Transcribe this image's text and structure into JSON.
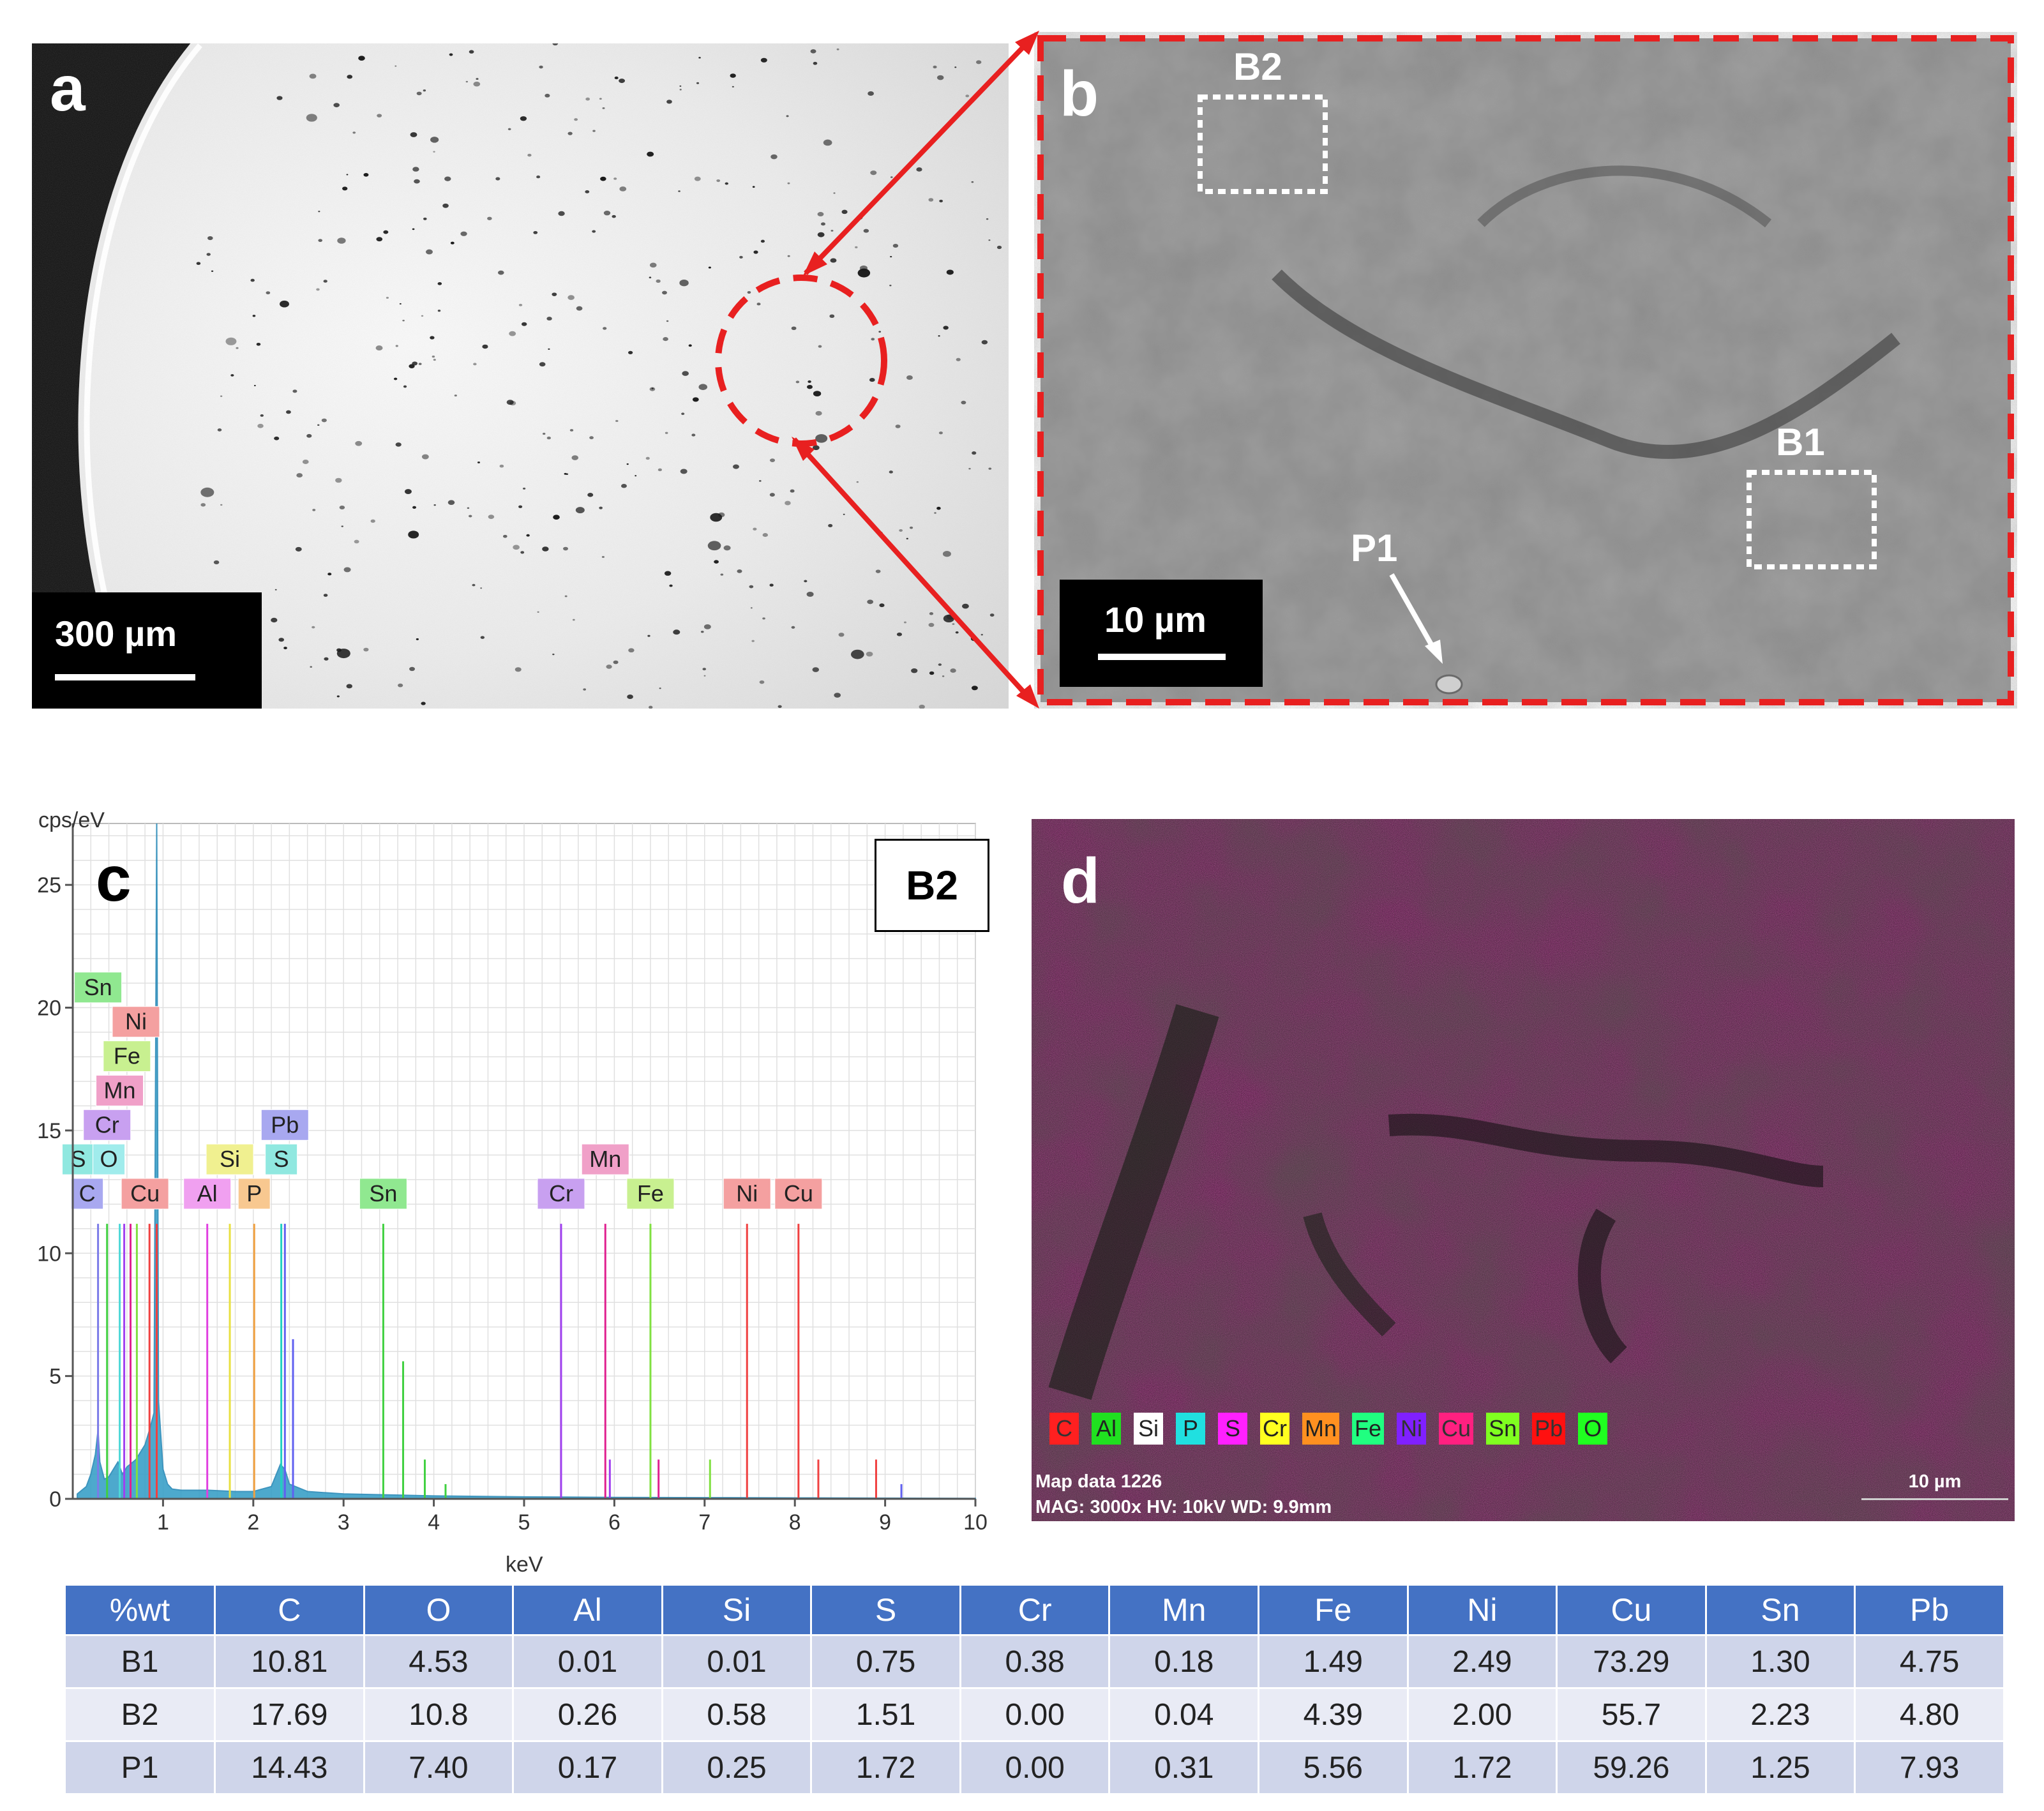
{
  "panel_a": {
    "label": "a",
    "scale_bar": "300 µm"
  },
  "panel_b": {
    "label": "b",
    "scale_bar": "10 µm",
    "regions": [
      {
        "name": "B2"
      },
      {
        "name": "B1"
      },
      {
        "name": "P1"
      }
    ]
  },
  "panel_c": {
    "label": "c",
    "box_label": "B2",
    "chart_data": {
      "type": "line",
      "xlabel": "keV",
      "ylabel": "cps/eV",
      "xlim": [
        0,
        10
      ],
      "ylim": [
        0,
        27.5
      ],
      "x_ticks": [
        1,
        2,
        3,
        4,
        5,
        6,
        7,
        8,
        9,
        10
      ],
      "y_ticks": [
        0,
        5,
        10,
        15,
        20,
        25
      ],
      "grid": true,
      "background": {
        "x": [
          0.05,
          0.15,
          0.2,
          0.25,
          0.28,
          0.3,
          0.35,
          0.4,
          0.45,
          0.5,
          0.55,
          0.6,
          0.7,
          0.8,
          0.85,
          0.9,
          0.93,
          0.95,
          1.0,
          1.05,
          1.1,
          1.2,
          1.5,
          1.8,
          2.0,
          2.2,
          2.3,
          2.35,
          2.4,
          2.6,
          3.0,
          4.0,
          5.0,
          6.0,
          7.0,
          8.0,
          9.0,
          10.0
        ],
        "y": [
          0.2,
          0.5,
          1.0,
          1.8,
          2.8,
          1.5,
          0.8,
          0.9,
          1.2,
          1.5,
          1.0,
          1.3,
          1.6,
          2.2,
          2.8,
          3.5,
          27.5,
          4.0,
          1.2,
          0.6,
          0.4,
          0.35,
          0.35,
          0.3,
          0.3,
          0.5,
          1.4,
          1.2,
          0.6,
          0.3,
          0.2,
          0.12,
          0.08,
          0.06,
          0.05,
          0.04,
          0.03,
          0.02
        ]
      },
      "peak_lines": [
        {
          "element": "C",
          "x": 0.28,
          "y": 11.2,
          "color": "#7b7be8"
        },
        {
          "element": "O",
          "x": 0.52,
          "y": 11.2,
          "color": "#4fd8d8"
        },
        {
          "element": "Sn",
          "x": 0.38,
          "y": 11.2,
          "color": "#40d040"
        },
        {
          "element": "Cr",
          "x": 0.57,
          "y": 11.2,
          "color": "#a040f0"
        },
        {
          "element": "Mn",
          "x": 0.64,
          "y": 11.2,
          "color": "#e02090"
        },
        {
          "element": "Fe",
          "x": 0.71,
          "y": 11.2,
          "color": "#80e040"
        },
        {
          "element": "Ni",
          "x": 0.85,
          "y": 11.2,
          "color": "#f04040"
        },
        {
          "element": "Cu",
          "x": 0.93,
          "y": 11.2,
          "color": "#f04040"
        },
        {
          "element": "Al",
          "x": 1.49,
          "y": 11.2,
          "color": "#e040e0"
        },
        {
          "element": "Si",
          "x": 1.74,
          "y": 11.2,
          "color": "#e8e040"
        },
        {
          "element": "P",
          "x": 2.01,
          "y": 11.2,
          "color": "#f0a040"
        },
        {
          "element": "S",
          "x": 2.31,
          "y": 11.2,
          "color": "#20d0c0"
        },
        {
          "element": "Pb",
          "x": 2.35,
          "y": 11.2,
          "color": "#6060f0"
        },
        {
          "element": "Sn",
          "x": 3.44,
          "y": 11.2,
          "color": "#40d040"
        },
        {
          "element": "Sn",
          "x": 3.66,
          "y": 5.6,
          "color": "#40d040"
        },
        {
          "element": "Cr",
          "x": 5.41,
          "y": 11.2,
          "color": "#a040f0"
        },
        {
          "element": "Mn",
          "x": 5.9,
          "y": 11.2,
          "color": "#e02090"
        },
        {
          "element": "Fe",
          "x": 6.4,
          "y": 11.2,
          "color": "#80e040"
        },
        {
          "element": "Ni",
          "x": 7.47,
          "y": 11.2,
          "color": "#f04040"
        },
        {
          "element": "Cu",
          "x": 8.04,
          "y": 11.2,
          "color": "#f04040"
        },
        {
          "element": "Mn",
          "x": 6.49,
          "y": 1.6,
          "color": "#e02090"
        },
        {
          "element": "Fe",
          "x": 7.06,
          "y": 1.6,
          "color": "#80e040"
        },
        {
          "element": "Ni",
          "x": 8.26,
          "y": 1.6,
          "color": "#f04040"
        },
        {
          "element": "Cu",
          "x": 8.9,
          "y": 1.6,
          "color": "#f04040"
        },
        {
          "element": "Cr",
          "x": 5.95,
          "y": 1.6,
          "color": "#a040f0"
        },
        {
          "element": "Pb",
          "x": 9.18,
          "y": 0.6,
          "color": "#6060f0"
        },
        {
          "element": "Pb",
          "x": 2.44,
          "y": 6.5,
          "color": "#6060f0"
        },
        {
          "element": "Sn",
          "x": 3.9,
          "y": 1.6,
          "color": "#40d040"
        },
        {
          "element": "Sn",
          "x": 4.13,
          "y": 0.6,
          "color": "#40d040"
        }
      ],
      "tags": [
        {
          "element": "Sn",
          "x": 0.28,
          "y": 20.2,
          "color": "#90e890"
        },
        {
          "element": "Ni",
          "x": 0.7,
          "y": 18.8,
          "color": "#f4a0a0"
        },
        {
          "element": "Fe",
          "x": 0.6,
          "y": 17.4,
          "color": "#c8f090"
        },
        {
          "element": "Mn",
          "x": 0.52,
          "y": 16.0,
          "color": "#f0a0c8"
        },
        {
          "element": "Cr",
          "x": 0.38,
          "y": 14.6,
          "color": "#c8a0f0"
        },
        {
          "element": "S",
          "x": 0.06,
          "y": 13.2,
          "color": "#90e8e0"
        },
        {
          "element": "O",
          "x": 0.4,
          "y": 13.2,
          "color": "#a0ecec"
        },
        {
          "element": "C",
          "x": 0.16,
          "y": 11.8,
          "color": "#a8a8f0"
        },
        {
          "element": "Cu",
          "x": 0.8,
          "y": 11.8,
          "color": "#f4a0a0"
        },
        {
          "element": "Al",
          "x": 1.49,
          "y": 11.8,
          "color": "#f0a0f0"
        },
        {
          "element": "Si",
          "x": 1.74,
          "y": 13.2,
          "color": "#f0f090"
        },
        {
          "element": "P",
          "x": 2.01,
          "y": 11.8,
          "color": "#f8c890"
        },
        {
          "element": "Pb",
          "x": 2.35,
          "y": 14.6,
          "color": "#a8a8f0"
        },
        {
          "element": "S",
          "x": 2.31,
          "y": 13.2,
          "color": "#90e8e0"
        },
        {
          "element": "Sn",
          "x": 3.44,
          "y": 11.8,
          "color": "#90e890"
        },
        {
          "element": "Mn",
          "x": 5.9,
          "y": 13.2,
          "color": "#f0a0c8"
        },
        {
          "element": "Cr",
          "x": 5.41,
          "y": 11.8,
          "color": "#c8a0f0"
        },
        {
          "element": "Fe",
          "x": 6.4,
          "y": 11.8,
          "color": "#c8f090"
        },
        {
          "element": "Ni",
          "x": 7.47,
          "y": 11.8,
          "color": "#f4a0a0"
        },
        {
          "element": "Cu",
          "x": 8.04,
          "y": 11.8,
          "color": "#f4a0a0"
        }
      ]
    }
  },
  "panel_d": {
    "label": "d",
    "legend": [
      {
        "element": "C",
        "color": "#ff2020"
      },
      {
        "element": "Al",
        "color": "#20e020"
      },
      {
        "element": "Si",
        "color": "#ffffff"
      },
      {
        "element": "P",
        "color": "#20e0e0"
      },
      {
        "element": "S",
        "color": "#ff20ff"
      },
      {
        "element": "Cr",
        "color": "#ffff20"
      },
      {
        "element": "Mn",
        "color": "#ff9020"
      },
      {
        "element": "Fe",
        "color": "#20ff80"
      },
      {
        "element": "Ni",
        "color": "#8020ff"
      },
      {
        "element": "Cu",
        "color": "#ff2080"
      },
      {
        "element": "Sn",
        "color": "#80ff20"
      },
      {
        "element": "Pb",
        "color": "#ff1010"
      },
      {
        "element": "O",
        "color": "#20ff20"
      }
    ],
    "map_title": "Map data 1226",
    "map_info": "MAG: 3000x  HV: 10kV  WD: 9.9mm",
    "scale_bar": "10 µm"
  },
  "table": {
    "headers": [
      "%wt",
      "C",
      "O",
      "Al",
      "Si",
      "S",
      "Cr",
      "Mn",
      "Fe",
      "Ni",
      "Cu",
      "Sn",
      "Pb"
    ],
    "rows": [
      [
        "B1",
        "10.81",
        "4.53",
        "0.01",
        "0.01",
        "0.75",
        "0.38",
        "0.18",
        "1.49",
        "2.49",
        "73.29",
        "1.30",
        "4.75"
      ],
      [
        "B2",
        "17.69",
        "10.8",
        "0.26",
        "0.58",
        "1.51",
        "0.00",
        "0.04",
        "4.39",
        "2.00",
        "55.7",
        "2.23",
        "4.80"
      ],
      [
        "P1",
        "14.43",
        "7.40",
        "0.17",
        "0.25",
        "1.72",
        "0.00",
        "0.31",
        "5.56",
        "1.72",
        "59.26",
        "1.25",
        "7.93"
      ]
    ]
  }
}
